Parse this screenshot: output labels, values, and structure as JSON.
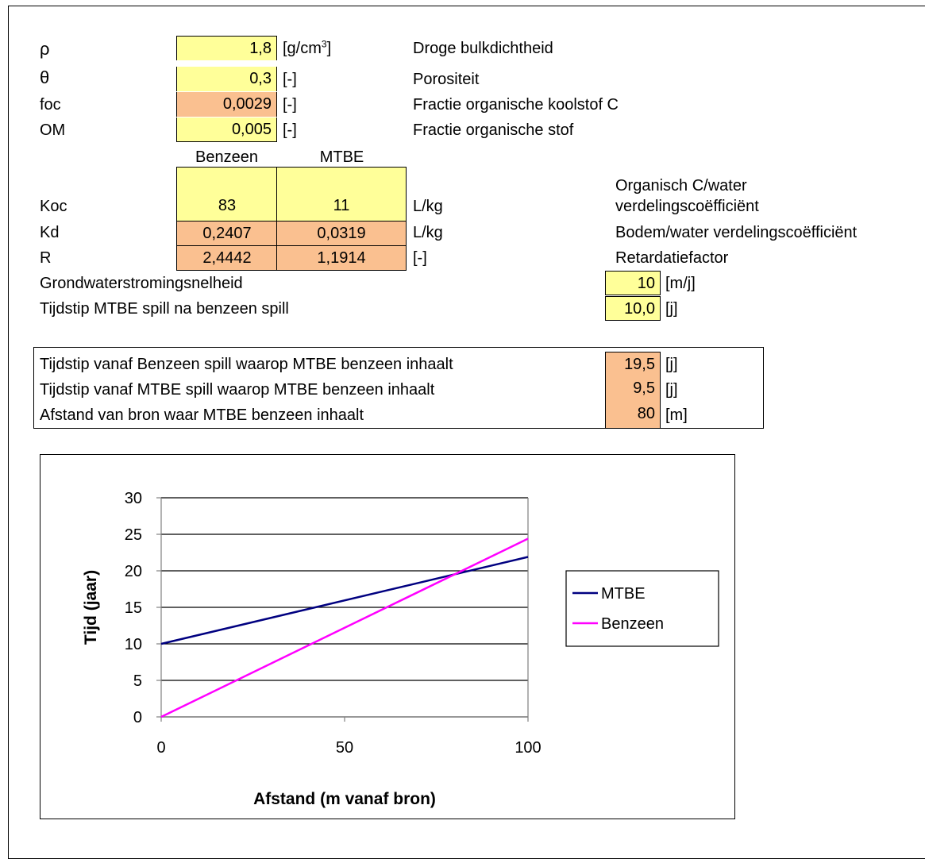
{
  "params": {
    "rho": {
      "sym": "ρ",
      "value": "1,8",
      "unit_pre": "[g/cm",
      "unit_sup": "3",
      "unit_post": "]",
      "desc": "Droge bulkdichtheid"
    },
    "theta": {
      "sym": "θ",
      "value": "0,3",
      "unit": "[-]",
      "desc": "Porositeit"
    },
    "foc": {
      "sym": "foc",
      "value": "0,0029",
      "unit": "[-]",
      "desc": "Fractie organische koolstof C"
    },
    "om": {
      "sym": "OM",
      "value": "0,005",
      "unit": "[-]",
      "desc": "Fractie organische stof"
    }
  },
  "columns": {
    "benzeen": "Benzeen",
    "mtbe": "MTBE"
  },
  "koc": {
    "label": "Koc",
    "benzeen": "83",
    "mtbe": "11",
    "unit": "L/kg",
    "desc_line1": "Organisch C/water",
    "desc_line2": "verdelingscoëfficiënt"
  },
  "kd": {
    "label": "Kd",
    "benzeen": "0,2407",
    "mtbe": "0,0319",
    "unit": "L/kg",
    "desc": "Bodem/water verdelingscoëfficiënt"
  },
  "r": {
    "label": "R",
    "benzeen": "2,4442",
    "mtbe": "1,1914",
    "unit": "[-]",
    "desc": "Retardatiefactor"
  },
  "flow": {
    "label": "Grondwaterstromingsnelheid",
    "value": "10",
    "unit": "[m/j]"
  },
  "spill": {
    "label": "Tijdstip MTBE spill na benzeen spill",
    "value": "10,0",
    "unit": "[j]"
  },
  "results": [
    {
      "label": "Tijdstip vanaf Benzeen spill waarop MTBE benzeen inhaalt",
      "value": "19,5",
      "unit": "[j]"
    },
    {
      "label": "Tijdstip vanaf MTBE spill waarop MTBE benzeen inhaalt",
      "value": "9,5",
      "unit": "[j]"
    },
    {
      "label": "Afstand van bron waar MTBE benzeen inhaalt",
      "value": "80",
      "unit": "[m]"
    }
  ],
  "chart_data": {
    "type": "line",
    "title": "",
    "xlabel": "Afstand (m vanaf bron)",
    "ylabel": "Tijd (jaar)",
    "xlim": [
      0,
      100
    ],
    "ylim": [
      0,
      30
    ],
    "xticks": [
      0,
      50,
      100
    ],
    "yticks": [
      0,
      5,
      10,
      15,
      20,
      25,
      30
    ],
    "grid": "horizontal",
    "legend": "right",
    "series": [
      {
        "name": "MTBE",
        "color": "#000080",
        "x": [
          0,
          100
        ],
        "y": [
          10,
          21.9
        ]
      },
      {
        "name": "Benzeen",
        "color": "#ff00ff",
        "x": [
          0,
          100
        ],
        "y": [
          0,
          24.4
        ]
      }
    ]
  }
}
